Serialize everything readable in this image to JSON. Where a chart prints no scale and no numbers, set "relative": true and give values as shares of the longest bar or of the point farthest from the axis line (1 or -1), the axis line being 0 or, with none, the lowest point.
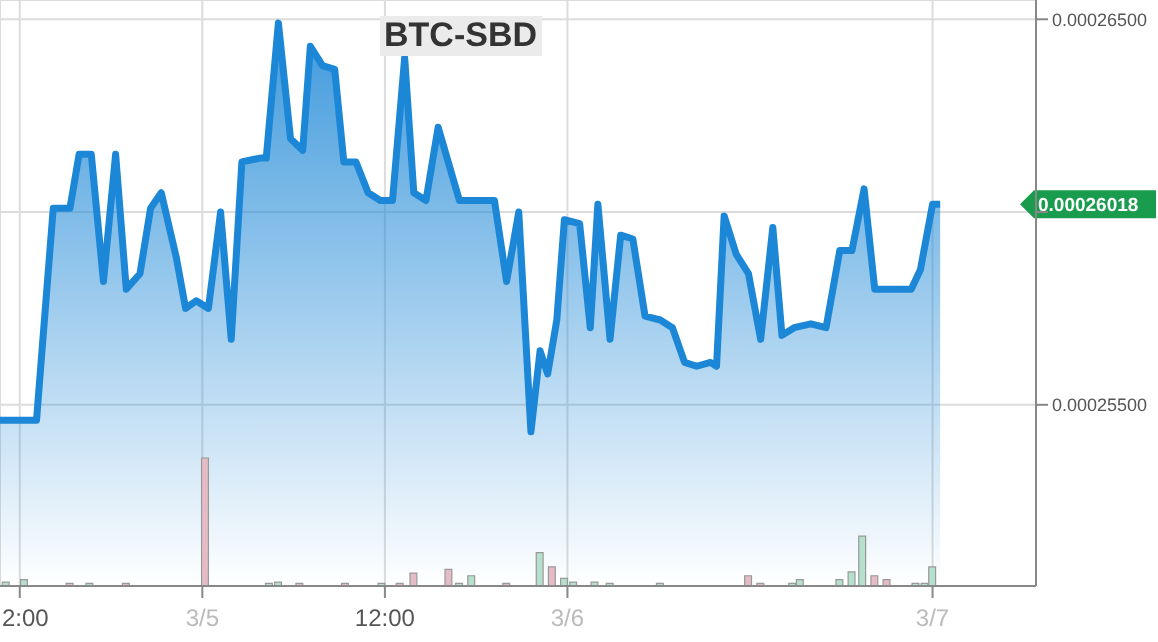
{
  "chart_data": [
    {
      "type": "area",
      "title": "BTC-SBD",
      "x": [
        "--03-04T10:42",
        "--03-04T13:06",
        "--03-04T14:12",
        "--03-04T15:18",
        "--03-04T15:54",
        "--03-04T16:42",
        "--03-04T17:30",
        "--03-04T18:18",
        "--03-04T19:00",
        "--03-04T19:54",
        "--03-04T20:36",
        "--03-04T21:18",
        "--03-04T22:18",
        "--03-04T22:54",
        "--03-04T23:36",
        "--03-05T00:24",
        "--03-05T01:12",
        "--03-05T01:54",
        "--03-05T02:36",
        "--03-05T03:48",
        "--03-05T04:12",
        "--03-05T05:00",
        "--03-05T05:48",
        "--03-05T06:36",
        "--03-05T07:06",
        "--03-05T07:54",
        "--03-05T08:42",
        "--03-05T09:18",
        "--03-05T10:06",
        "--03-05T10:54",
        "--03-05T11:42",
        "--03-05T12:30",
        "--03-05T13:18",
        "--03-05T13:54",
        "--03-05T14:42",
        "--03-05T15:30",
        "--03-05T16:54",
        "--03-05T19:12",
        "--03-05T20:00",
        "--03-05T20:48",
        "--03-05T21:36",
        "--03-05T22:12",
        "--03-05T22:42",
        "--03-05T23:18",
        "--03-05T23:48",
        "--03-06T00:48",
        "--03-06T01:30",
        "--03-06T02:00",
        "--03-06T02:48",
        "--03-06T03:30",
        "--03-06T04:18",
        "--03-06T05:06",
        "--03-06T06:06",
        "--03-06T06:54",
        "--03-06T07:42",
        "--03-06T08:30",
        "--03-06T09:24",
        "--03-06T09:48",
        "--03-06T10:18",
        "--03-06T11:06",
        "--03-06T11:54",
        "--03-06T12:42",
        "--03-06T13:30",
        "--03-06T14:06",
        "--03-06T14:54",
        "--03-06T16:00",
        "--03-06T17:00",
        "--03-06T17:54",
        "--03-06T18:42",
        "--03-06T19:30",
        "--03-06T20:12",
        "--03-06T21:24",
        "--03-06T22:36",
        "--03-06T23:12",
        "--03-07T00:00",
        "--03-07T00:30"
      ],
      "series": [
        {
          "color": "#1c87d6",
          "values": [
            0.0002546,
            0.0002546,
            0.0002601,
            0.0002601,
            0.0002615,
            0.0002615,
            0.0002582,
            0.0002615,
            0.000258,
            0.0002584,
            0.0002601,
            0.0002605,
            0.0002588,
            0.0002575,
            0.0002577,
            0.0002575,
            0.00026,
            0.0002567,
            0.0002613,
            0.0002614,
            0.0002614,
            0.0002649,
            0.0002619,
            0.0002616,
            0.0002643,
            0.0002638,
            0.0002637,
            0.0002613,
            0.0002613,
            0.0002605,
            0.0002603,
            0.0002603,
            0.000264,
            0.0002605,
            0.0002603,
            0.0002622,
            0.0002603,
            0.0002603,
            0.0002582,
            0.00026,
            0.0002543,
            0.0002564,
            0.0002558,
            0.0002572,
            0.0002598,
            0.0002597,
            0.000257,
            0.0002602,
            0.0002567,
            0.0002594,
            0.0002593,
            0.0002573,
            0.0002572,
            0.000257,
            0.0002561,
            0.000256,
            0.0002561,
            0.000256,
            0.0002599,
            0.0002589,
            0.0002584,
            0.0002567,
            0.0002596,
            0.0002568,
            0.000257,
            0.0002571,
            0.000257,
            0.000259,
            0.000259,
            0.0002606,
            0.000258,
            0.000258,
            0.000258,
            0.0002585,
            0.0002602,
            0.0002602
          ]
        }
      ],
      "xlim": [
        "--03-04T10:42",
        "--03-07T06:48"
      ],
      "xticks": [
        {
          "value": "--03-04T12:00",
          "label": "2:00"
        },
        {
          "value": "--03-05",
          "label": "3/5"
        },
        {
          "value": "--03-05T12:00",
          "label": "12:00"
        },
        {
          "value": "--03-06",
          "label": "3/6"
        },
        {
          "value": "--03-07",
          "label": "3/7"
        }
      ],
      "ylim": [
        0.0002503,
        0.0002655
      ],
      "yticks": [
        {
          "value": 0.000255,
          "label": "0.00025500"
        },
        {
          "value": 0.00026,
          "label": null
        },
        {
          "value": 0.000265,
          "label": "0.00026500"
        }
      ],
      "grid": true,
      "marker": "none",
      "annotations": [
        "0.00026018"
      ]
    },
    {
      "type": "bar",
      "relative": true,
      "x": [
        "--03-04T11:06",
        "--03-04T12:18",
        "--03-04T15:18",
        "--03-04T16:36",
        "--03-04T19:00",
        "--03-05T00:12",
        "--03-05T04:24",
        "--03-05T05:00",
        "--03-05T06:24",
        "--03-05T09:24",
        "--03-05T11:48",
        "--03-05T13:00",
        "--03-05T13:54",
        "--03-05T16:12",
        "--03-05T16:54",
        "--03-05T17:42",
        "--03-05T20:00",
        "--03-05T22:12",
        "--03-05T23:00",
        "--03-05T23:48",
        "--03-06T00:24",
        "--03-06T01:48",
        "--03-06T02:48",
        "--03-06T06:06",
        "--03-06T11:54",
        "--03-06T12:42",
        "--03-06T14:48",
        "--03-06T15:18",
        "--03-06T17:54",
        "--03-06T18:42",
        "--03-06T19:24",
        "--03-06T20:12",
        "--03-06T21:00",
        "--03-06T22:54",
        "--03-06T23:30",
        "--03-07T00:00"
      ],
      "xlim": [
        "--03-04T10:42",
        "--03-07T06:48"
      ],
      "values": [
        0.03,
        0.05,
        0.02,
        0.02,
        0.02,
        1,
        0.02,
        0.03,
        0.02,
        0.02,
        0.02,
        0.02,
        0.1,
        0.13,
        0.02,
        0.08,
        0.02,
        0.26,
        0.15,
        0.06,
        0.03,
        0.03,
        0.02,
        0.02,
        0.08,
        0.02,
        0.02,
        0.05,
        0.05,
        0.11,
        0.39,
        0.08,
        0.05,
        0.02,
        0.02,
        0.15
      ],
      "colors": [
        "#b5e0cc",
        "#b5e0cc",
        "#e5bcc6",
        "#b5e0cc",
        "#e5bcc6",
        "#e5bcc6",
        "#b5e0cc",
        "#b5e0cc",
        "#e5bcc6",
        "#e5bcc6",
        "#b5e0cc",
        "#e5bcc6",
        "#e5bcc6",
        "#e5bcc6",
        "#b5e0cc",
        "#b5e0cc",
        "#e5bcc6",
        "#b5e0cc",
        "#e5bcc6",
        "#b5e0cc",
        "#b5e0cc",
        "#b5e0cc",
        "#b5e0cc",
        "#b5e0cc",
        "#e5bcc6",
        "#e5bcc6",
        "#b5e0cc",
        "#b5e0cc",
        "#b5e0cc",
        "#b5e0cc",
        "#b5e0cc",
        "#e5bcc6",
        "#e5bcc6",
        "#b5e0cc",
        "#b5e0cc",
        "#b5e0cc"
      ]
    }
  ]
}
